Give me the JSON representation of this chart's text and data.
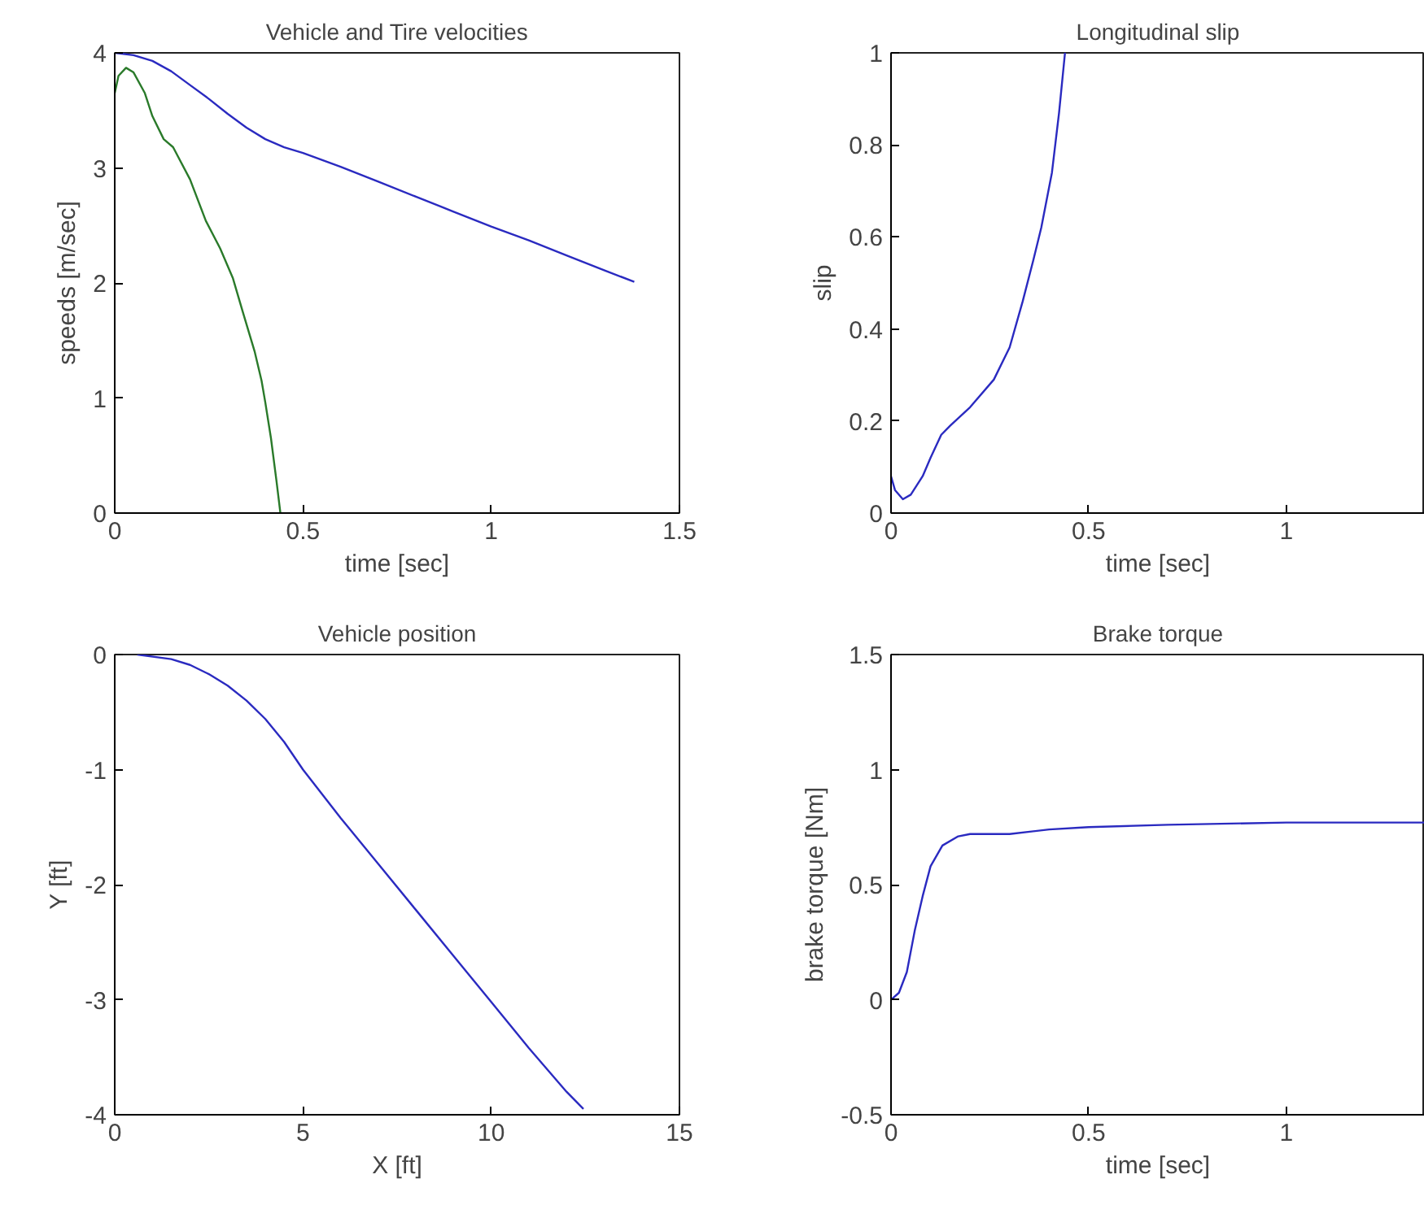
{
  "chart_data": [
    {
      "type": "line",
      "title": "Vehicle and Tire velocities",
      "xlabel": "time [sec]",
      "ylabel": "speeds [m/sec]",
      "xlim": [
        0,
        1.5
      ],
      "ylim": [
        0,
        4
      ],
      "xticks": [
        0,
        0.5,
        1,
        1.5
      ],
      "yticks": [
        0,
        1,
        2,
        3,
        4
      ],
      "series": [
        {
          "color": "#2a2ac0",
          "x": [
            0,
            0.05,
            0.1,
            0.15,
            0.2,
            0.25,
            0.3,
            0.35,
            0.4,
            0.45,
            0.5,
            0.6,
            0.7,
            0.8,
            0.9,
            1.0,
            1.1,
            1.2,
            1.3,
            1.38
          ],
          "values": [
            4,
            3.98,
            3.93,
            3.84,
            3.72,
            3.6,
            3.47,
            3.35,
            3.25,
            3.18,
            3.13,
            3.01,
            2.88,
            2.75,
            2.62,
            2.49,
            2.37,
            2.24,
            2.11,
            2.01
          ]
        },
        {
          "color": "#2a7a2a",
          "x": [
            0,
            0.01,
            0.03,
            0.05,
            0.08,
            0.1,
            0.13,
            0.155,
            0.2,
            0.242,
            0.28,
            0.314,
            0.34,
            0.372,
            0.39,
            0.4,
            0.415,
            0.43,
            0.44
          ],
          "values": [
            3.65,
            3.8,
            3.87,
            3.83,
            3.65,
            3.45,
            3.25,
            3.18,
            2.9,
            2.54,
            2.3,
            2.04,
            1.75,
            1.4,
            1.15,
            0.96,
            0.65,
            0.27,
            0
          ]
        }
      ]
    },
    {
      "type": "line",
      "title": "Longitudinal slip",
      "xlabel": "time [sec]",
      "ylabel": "slip",
      "xlim": [
        0,
        1.35
      ],
      "ylim": [
        0,
        1
      ],
      "xticks": [
        0,
        0.5,
        1
      ],
      "yticks": [
        0,
        0.2,
        0.4,
        0.6,
        0.8,
        1
      ],
      "series": [
        {
          "color": "#2a2ac0",
          "x": [
            0,
            0.01,
            0.03,
            0.05,
            0.08,
            0.1,
            0.127,
            0.15,
            0.2,
            0.26,
            0.3,
            0.333,
            0.36,
            0.38,
            0.407,
            0.425,
            0.44
          ],
          "values": [
            0.08,
            0.05,
            0.03,
            0.04,
            0.08,
            0.12,
            0.17,
            0.19,
            0.23,
            0.29,
            0.36,
            0.46,
            0.55,
            0.62,
            0.74,
            0.87,
            1.0
          ]
        }
      ]
    },
    {
      "type": "line",
      "title": "Vehicle position",
      "xlabel": "X [ft]",
      "ylabel": "Y [ft]",
      "xlim": [
        0,
        15
      ],
      "ylim": [
        -4,
        0
      ],
      "xticks": [
        0,
        5,
        10,
        15
      ],
      "yticks": [
        -4,
        -3,
        -2,
        -1,
        0
      ],
      "series": [
        {
          "color": "#2a2ac0",
          "x": [
            0.6,
            1.5,
            2,
            2.5,
            3,
            3.5,
            4,
            4.5,
            5,
            6,
            7,
            8,
            9,
            10,
            11,
            12,
            12.45
          ],
          "values": [
            0,
            -0.04,
            -0.09,
            -0.17,
            -0.27,
            -0.4,
            -0.56,
            -0.76,
            -1.0,
            -1.42,
            -1.82,
            -2.22,
            -2.62,
            -3.02,
            -3.42,
            -3.8,
            -3.95
          ]
        }
      ]
    },
    {
      "type": "line",
      "title": "Brake torque",
      "xlabel": "time [sec]",
      "ylabel": "brake torque [Nm]",
      "xlim": [
        0,
        1.35
      ],
      "ylim": [
        -0.5,
        1.5
      ],
      "xticks": [
        0,
        0.5,
        1
      ],
      "yticks": [
        -0.5,
        0,
        0.5,
        1,
        1.5
      ],
      "series": [
        {
          "color": "#2a2ac0",
          "x": [
            0,
            0.02,
            0.04,
            0.06,
            0.08,
            0.1,
            0.13,
            0.17,
            0.2,
            0.3,
            0.4,
            0.5,
            0.7,
            1.0,
            1.35
          ],
          "values": [
            0,
            0.03,
            0.12,
            0.3,
            0.45,
            0.58,
            0.67,
            0.71,
            0.72,
            0.72,
            0.74,
            0.75,
            0.76,
            0.77,
            0.77
          ]
        }
      ]
    }
  ]
}
